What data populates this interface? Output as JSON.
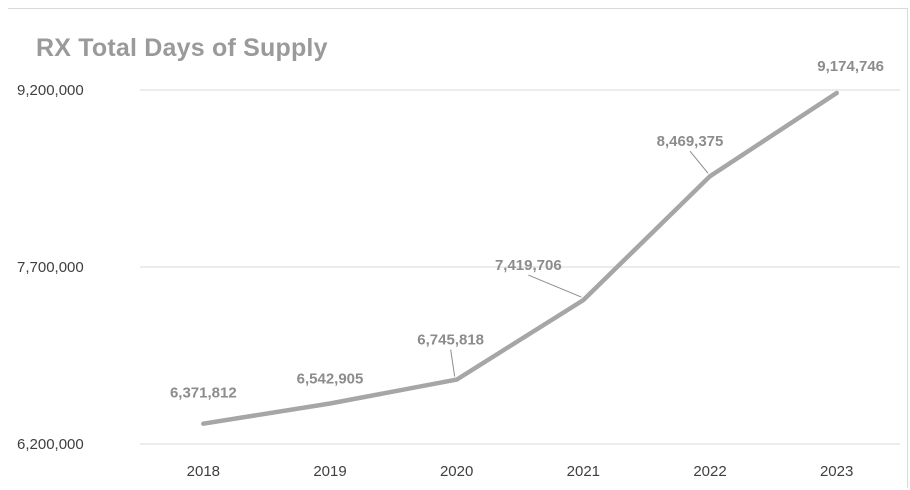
{
  "chart_data": {
    "type": "line",
    "title": "RX Total Days of Supply",
    "xlabel": "",
    "ylabel": "",
    "categories": [
      "2018",
      "2019",
      "2020",
      "2021",
      "2022",
      "2023"
    ],
    "series": [
      {
        "values": [
          6371812,
          6542905,
          6745818,
          7419706,
          8469375,
          9174746
        ]
      }
    ],
    "data_labels": [
      "6,371,812",
      "6,542,905",
      "6,745,818",
      "7,419,706",
      "8,469,375",
      "9,174,746"
    ],
    "y_ticks": [
      6200000,
      7700000,
      9200000
    ],
    "y_tick_labels": [
      "6,200,000",
      "7,700,000",
      "9,200,000"
    ],
    "ylim": [
      6200000,
      9200000
    ],
    "grid": true,
    "legend": "none",
    "colors": {
      "line": "#a6a6a6",
      "grid": "#d9d9d9",
      "title": "#9a9a9a",
      "data_label": "#8c8c8c",
      "tick_label": "#3f3f3f"
    }
  }
}
